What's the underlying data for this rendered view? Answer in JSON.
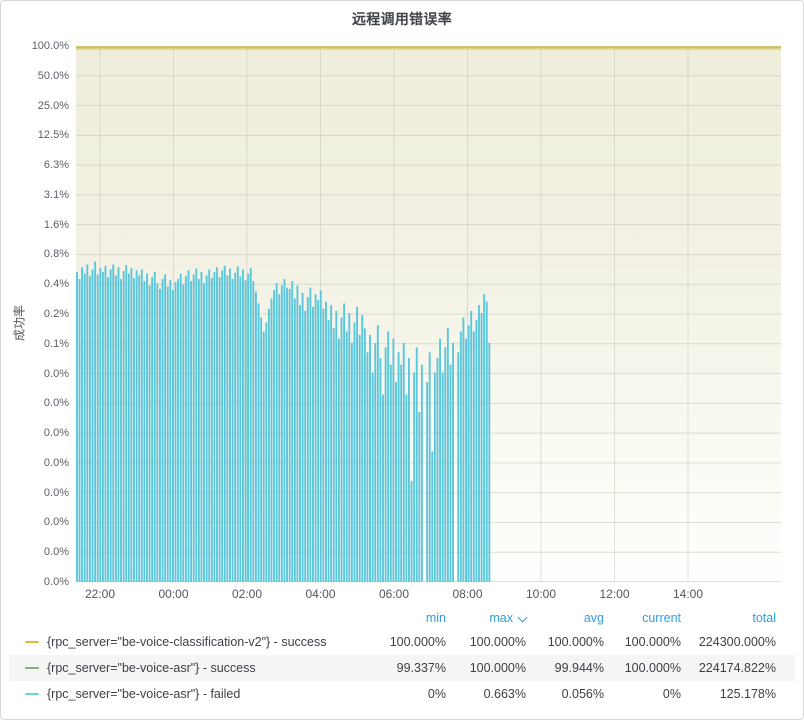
{
  "title": "远程调用错误率",
  "chart_data": {
    "type": "bar",
    "title": "远程调用错误率",
    "xlabel": "",
    "ylabel": "成功率",
    "y_scale": "log2",
    "grid": true,
    "y_axis_ticks": [
      "100.0%",
      "50.0%",
      "25.0%",
      "12.5%",
      "6.3%",
      "3.1%",
      "1.6%",
      "0.8%",
      "0.4%",
      "0.2%",
      "0.1%",
      "0.0%",
      "0.0%",
      "0.0%",
      "0.0%",
      "0.0%",
      "0.0%",
      "0.0%",
      "0.0%"
    ],
    "y_tick_values_percent": [
      100,
      50,
      25,
      12.5,
      6.25,
      3.125,
      1.5625,
      0.78125,
      0.390625,
      0.1953125,
      0.09765625,
      0.048828125,
      0.0244140625,
      0.01220703125,
      0.006103515625,
      0.0030517578125,
      0.00152587890625,
      0.000762939453125,
      0.0003814697265625
    ],
    "x_ticks": [
      "22:00",
      "00:00",
      "02:00",
      "04:00",
      "06:00",
      "08:00",
      "10:00",
      "12:00",
      "14:00"
    ],
    "series": [
      {
        "name": "{rpc_server=\"be-voice-classification-v2\"} - success",
        "type": "line",
        "color": "#d2bd52",
        "legend_color": "#eab839",
        "value_percent": 100
      },
      {
        "name": "{rpc_server=\"be-voice-asr\"} - success",
        "type": "line",
        "color": "#7eb26d",
        "legend_color": "#7eb26d",
        "value_percent": 100
      },
      {
        "name": "{rpc_server=\"be-voice-asr\"} - failed",
        "type": "bars",
        "color": "#5cc6db",
        "legend_color": "#6ed0e0",
        "data_start": "21:20",
        "data_end": "08:30",
        "values_percent": [
          0.52,
          0.44,
          0.58,
          0.5,
          0.62,
          0.47,
          0.55,
          0.663,
          0.49,
          0.57,
          0.52,
          0.6,
          0.46,
          0.55,
          0.62,
          0.48,
          0.58,
          0.44,
          0.53,
          0.61,
          0.5,
          0.57,
          0.45,
          0.54,
          0.48,
          0.55,
          0.42,
          0.5,
          0.38,
          0.46,
          0.52,
          0.4,
          0.35,
          0.44,
          0.49,
          0.37,
          0.43,
          0.34,
          0.41,
          0.44,
          0.5,
          0.39,
          0.47,
          0.54,
          0.42,
          0.49,
          0.56,
          0.44,
          0.52,
          0.4,
          0.48,
          0.55,
          0.45,
          0.52,
          0.58,
          0.46,
          0.54,
          0.6,
          0.48,
          0.56,
          0.44,
          0.51,
          0.59,
          0.47,
          0.55,
          0.43,
          0.5,
          0.57,
          0.42,
          0.33,
          0.25,
          0.18,
          0.13,
          0.16,
          0.22,
          0.28,
          0.34,
          0.4,
          0.31,
          0.38,
          0.44,
          0.36,
          0.35,
          0.42,
          0.28,
          0.38,
          0.24,
          0.32,
          0.21,
          0.29,
          0.36,
          0.23,
          0.31,
          0.27,
          0.34,
          0.22,
          0.26,
          0.17,
          0.24,
          0.14,
          0.21,
          0.11,
          0.18,
          0.25,
          0.13,
          0.2,
          0.1,
          0.16,
          0.23,
          0.12,
          0.19,
          0.14,
          0.08,
          0.12,
          0.05,
          0.1,
          0.15,
          0.07,
          0.03,
          0.09,
          0.13,
          0.06,
          0.11,
          0.04,
          0.08,
          0.06,
          0.1,
          0.03,
          0.07,
          0.004,
          0.05,
          0.09,
          0.02,
          0.06,
          0,
          0.04,
          0.08,
          0.008,
          0.05,
          0.07,
          0.11,
          0.05,
          0.09,
          0.14,
          0.06,
          0.1,
          0,
          0.08,
          0.13,
          0.18,
          0.11,
          0.15,
          0.21,
          0.13,
          0.17,
          0.24,
          0.2,
          0.31,
          0.26,
          0.1
        ]
      }
    ]
  },
  "legend": {
    "columns": [
      {
        "key": "min",
        "label": "min",
        "sorted": false
      },
      {
        "key": "max",
        "label": "max",
        "sorted": true
      },
      {
        "key": "avg",
        "label": "avg",
        "sorted": false
      },
      {
        "key": "current",
        "label": "current",
        "sorted": false
      },
      {
        "key": "total",
        "label": "total",
        "sorted": false
      }
    ],
    "rows": [
      {
        "label": "{rpc_server=\"be-voice-classification-v2\"} - success",
        "color": "#eab839",
        "min": "100.000%",
        "max": "100.000%",
        "avg": "100.000%",
        "current": "100.000%",
        "total": "224300.000%"
      },
      {
        "label": "{rpc_server=\"be-voice-asr\"} - success",
        "color": "#7eb26d",
        "min": "99.337%",
        "max": "100.000%",
        "avg": "99.944%",
        "current": "100.000%",
        "total": "224174.822%"
      },
      {
        "label": "{rpc_server=\"be-voice-asr\"} - failed",
        "color": "#6ed0e0",
        "min": "0%",
        "max": "0.663%",
        "avg": "0.056%",
        "current": "0%",
        "total": "125.178%"
      }
    ]
  },
  "colors": {
    "legend_header": "#2f9fdb",
    "plot_fill_top": "#efeedc",
    "gridline": "#c2c2b2",
    "tick_text": "#5b5f66"
  }
}
